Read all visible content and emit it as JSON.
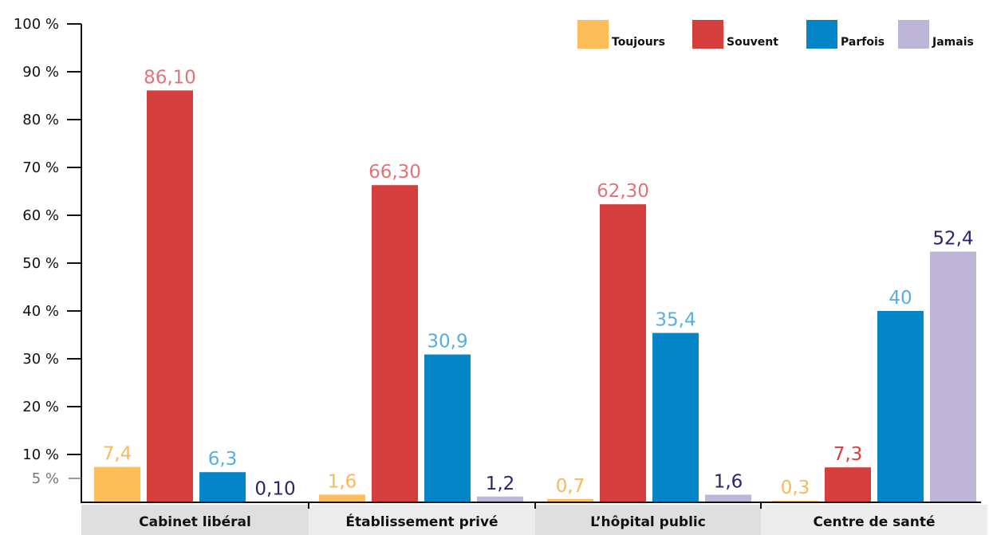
{
  "chart_data": {
    "type": "bar",
    "categories": [
      "Cabinet libéral",
      "Établissement privé",
      "L’hôpital public",
      "Centre de santé"
    ],
    "series": [
      {
        "name": "Toujours",
        "values": [
          7.4,
          1.6,
          0.7,
          0.3
        ],
        "labels": [
          "7,4",
          "1,6",
          "0,7",
          "0,3"
        ],
        "color": "#FDBD58",
        "label_color": "#F9B85A"
      },
      {
        "name": "Souvent",
        "values": [
          86.1,
          66.3,
          62.3,
          7.3
        ],
        "labels": [
          "86,10",
          "66,30",
          "62,30",
          "7,3"
        ],
        "color": "#D43E3D",
        "label_color": "#E07478",
        "alt_label_color": "#D43E3D"
      },
      {
        "name": "Parfois",
        "values": [
          6.3,
          30.9,
          35.4,
          40
        ],
        "labels": [
          "6,3",
          "30,9",
          "35,4",
          "40"
        ],
        "color": "#0385C8",
        "label_color": "#5AAEDC"
      },
      {
        "name": "Jamais",
        "values": [
          0.1,
          1.2,
          1.6,
          52.4
        ],
        "labels": [
          "0,10",
          "1,2",
          "1,6",
          "52,4"
        ],
        "color": "#BDB6D8",
        "label_color": "#2A2468"
      }
    ],
    "yticks": [
      {
        "value": 5,
        "label": "5 %"
      },
      {
        "value": 10,
        "label": "10 %"
      },
      {
        "value": 20,
        "label": "20 %"
      },
      {
        "value": 30,
        "label": "30 %"
      },
      {
        "value": 40,
        "label": "40 %"
      },
      {
        "value": 50,
        "label": "50 %"
      },
      {
        "value": 60,
        "label": "60 %"
      },
      {
        "value": 70,
        "label": "70 %"
      },
      {
        "value": 80,
        "label": "80 %"
      },
      {
        "value": 90,
        "label": "90 %"
      },
      {
        "value": 100,
        "label": "100 %"
      }
    ],
    "ylim": [
      0,
      100
    ],
    "title": "",
    "xlabel": "",
    "ylabel": "",
    "grid": false,
    "legend_position": "top-right",
    "category_band_colors": [
      "#E0DFDF",
      "#EDEDED"
    ]
  }
}
